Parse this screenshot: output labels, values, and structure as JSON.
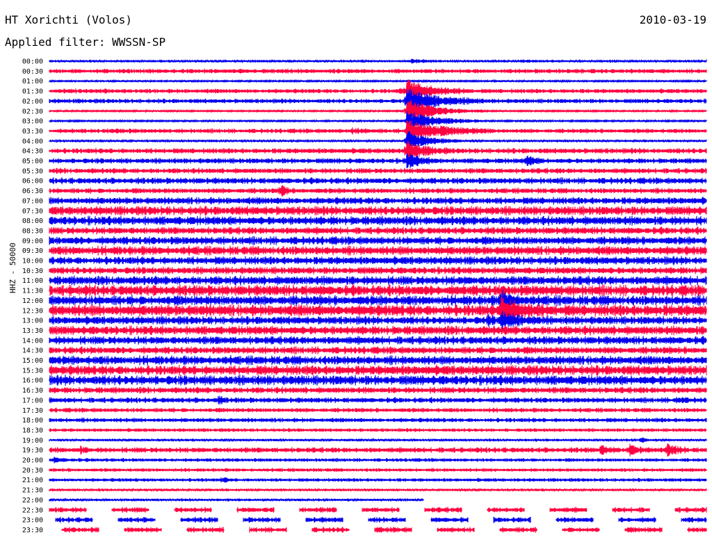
{
  "header": {
    "station": "HT Xorichti (Volos)",
    "filter": "Applied filter: WWSSN-SP",
    "date": "2010-03-19",
    "channel": "HHZ - 50000"
  },
  "colors": {
    "even_trace": "#0000ee",
    "odd_trace": "#ff0040",
    "background": "#ffffff"
  },
  "chart_data": {
    "type": "line",
    "title": "HT Xorichti (Volos)",
    "subtitle": "Applied filter: WWSSN-SP",
    "ylabel": "HHZ - 50000",
    "row_interval_minutes": 30,
    "trace_colors_alternate": [
      "#0000ee",
      "#ff0040"
    ],
    "row_labels": [
      "00:00",
      "00:30",
      "01:00",
      "01:30",
      "02:00",
      "02:30",
      "03:00",
      "03:30",
      "04:00",
      "04:30",
      "05:00",
      "05:30",
      "06:00",
      "06:30",
      "07:00",
      "07:30",
      "08:00",
      "08:30",
      "09:00",
      "09:30",
      "10:00",
      "10:30",
      "11:00",
      "11:30",
      "12:00",
      "12:30",
      "13:00",
      "13:30",
      "14:00",
      "14:30",
      "15:00",
      "15:30",
      "16:00",
      "16:30",
      "17:00",
      "17:30",
      "18:00",
      "18:30",
      "19:00",
      "19:30",
      "20:00",
      "20:30",
      "21:00",
      "21:30",
      "22:00",
      "22:30",
      "23:00",
      "23:30"
    ],
    "row_noise_level": [
      0.3,
      0.5,
      0.2,
      0.5,
      0.5,
      0.2,
      0.2,
      0.5,
      0.3,
      0.6,
      0.6,
      0.6,
      0.7,
      0.6,
      0.8,
      1.0,
      1.0,
      0.8,
      0.9,
      1.0,
      0.9,
      0.8,
      1.0,
      1.2,
      1.1,
      1.3,
      0.9,
      1.0,
      0.9,
      0.8,
      1.0,
      1.1,
      1.1,
      0.7,
      0.6,
      0.5,
      0.5,
      0.4,
      0.3,
      0.6,
      0.4,
      0.4,
      0.4,
      0.3,
      0.3,
      0.6,
      0.6,
      0.6
    ],
    "row_ends_at_fraction": {
      "44": 0.57
    },
    "intermittent_rows": [
      45,
      46,
      47
    ],
    "events": [
      {
        "row": 0,
        "minute": 16.5,
        "amplitude": 0.5,
        "duration": 1.5
      },
      {
        "row": 0,
        "minute": 21.5,
        "amplitude": 0.3,
        "duration": 1.0
      },
      {
        "row": 2,
        "minute": 20.3,
        "amplitude": 0.3,
        "duration": 0.6
      },
      {
        "row": 3,
        "minute": 16.0,
        "amplitude": 0.6,
        "duration": 0.6
      },
      {
        "row": 3,
        "minute": 16.3,
        "amplitude": 3.0,
        "duration": 3.0
      },
      {
        "row": 4,
        "minute": 16.3,
        "amplitude": 3.5,
        "duration": 3.5
      },
      {
        "row": 5,
        "minute": 16.3,
        "amplitude": 3.5,
        "duration": 3.5
      },
      {
        "row": 6,
        "minute": 16.3,
        "amplitude": 3.0,
        "duration": 3.5
      },
      {
        "row": 7,
        "minute": 16.3,
        "amplitude": 3.0,
        "duration": 4.0
      },
      {
        "row": 7,
        "minute": 13.8,
        "amplitude": 0.5,
        "duration": 1.5
      },
      {
        "row": 7,
        "minute": 3.0,
        "amplitude": 0.4,
        "duration": 1.0
      },
      {
        "row": 8,
        "minute": 16.3,
        "amplitude": 3.0,
        "duration": 2.5
      },
      {
        "row": 9,
        "minute": 16.3,
        "amplitude": 2.5,
        "duration": 2.0
      },
      {
        "row": 10,
        "minute": 16.3,
        "amplitude": 2.0,
        "duration": 1.5
      },
      {
        "row": 10,
        "minute": 21.8,
        "amplitude": 1.4,
        "duration": 0.8
      },
      {
        "row": 13,
        "minute": 10.6,
        "amplitude": 1.6,
        "duration": 0.5
      },
      {
        "row": 24,
        "minute": 20.6,
        "amplitude": 2.0,
        "duration": 1.5
      },
      {
        "row": 25,
        "minute": 20.6,
        "amplitude": 3.0,
        "duration": 2.5
      },
      {
        "row": 26,
        "minute": 20.6,
        "amplitude": 2.0,
        "duration": 2.0
      },
      {
        "row": 26,
        "minute": 20.0,
        "amplitude": 1.0,
        "duration": 0.5
      },
      {
        "row": 34,
        "minute": 7.7,
        "amplitude": 1.2,
        "duration": 0.4
      },
      {
        "row": 34,
        "minute": 28.6,
        "amplitude": 0.6,
        "duration": 0.8
      },
      {
        "row": 39,
        "minute": 1.4,
        "amplitude": 0.8,
        "duration": 0.5
      },
      {
        "row": 39,
        "minute": 28.2,
        "amplitude": 1.8,
        "duration": 1.0
      },
      {
        "row": 39,
        "minute": 26.5,
        "amplitude": 1.5,
        "duration": 0.8
      },
      {
        "row": 39,
        "minute": 25.2,
        "amplitude": 1.2,
        "duration": 0.8
      },
      {
        "row": 40,
        "minute": 0.2,
        "amplitude": 0.5,
        "duration": 1.2
      },
      {
        "row": 42,
        "minute": 7.9,
        "amplitude": 0.7,
        "duration": 0.5
      },
      {
        "row": 38,
        "minute": 27.0,
        "amplitude": 1.0,
        "duration": 0.4
      },
      {
        "row": 45,
        "minute": 10.2,
        "amplitude": 1.0,
        "duration": 0.2
      }
    ]
  }
}
